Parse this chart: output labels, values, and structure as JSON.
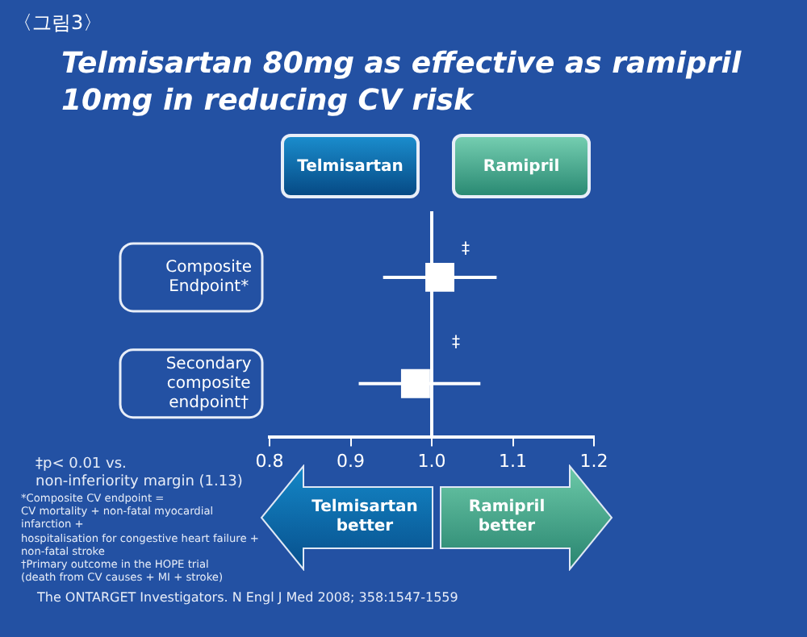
{
  "chart_data": {
    "type": "scatter",
    "title": "Telmisartan 80mg as effective as ramipril 10mg in reducing CV risk",
    "categories": [
      "Composite Endpoint*",
      "Secondary composite endpoint†"
    ],
    "values": [
      1.01,
      0.98
    ],
    "errors": [
      [
        0.94,
        1.08
      ],
      [
        0.91,
        1.06
      ]
    ],
    "color": "#ffffff",
    "marker": "square",
    "orientation": "horizontal",
    "xlim": [
      0.8,
      1.2
    ],
    "xticks": [
      {
        "value": 0.8,
        "label": "0.8"
      },
      {
        "value": 0.9,
        "label": "0.9"
      },
      {
        "value": 1.0,
        "label": "1.0"
      },
      {
        "value": 1.1,
        "label": "1.1"
      },
      {
        "value": 1.2,
        "label": "1.2"
      }
    ],
    "ref_lines": [
      {
        "axis": "x",
        "value": 1.0,
        "color": "#ffffff"
      }
    ],
    "grid": false,
    "legend": false,
    "annotations": [
      "〈그림3〉",
      "Telmisartan",
      "Ramipril",
      "Telmisartan\nbetter",
      "Ramipril\nbetter",
      "‡p< 0.01 vs.\nnon-inferiority margin (1.13)",
      "*Composite CV endpoint =\nCV mortality + non-fatal myocardial\ninfarction +\nhospitalisation for congestive heart failure +\nnon-fatal stroke\n†Primary outcome in the HOPE trial\n(death from CV causes + MI + stroke)",
      "The ONTARGET Investigators. N Engl J Med 2008; 358:1547-1559",
      "‡",
      "‡"
    ]
  }
}
